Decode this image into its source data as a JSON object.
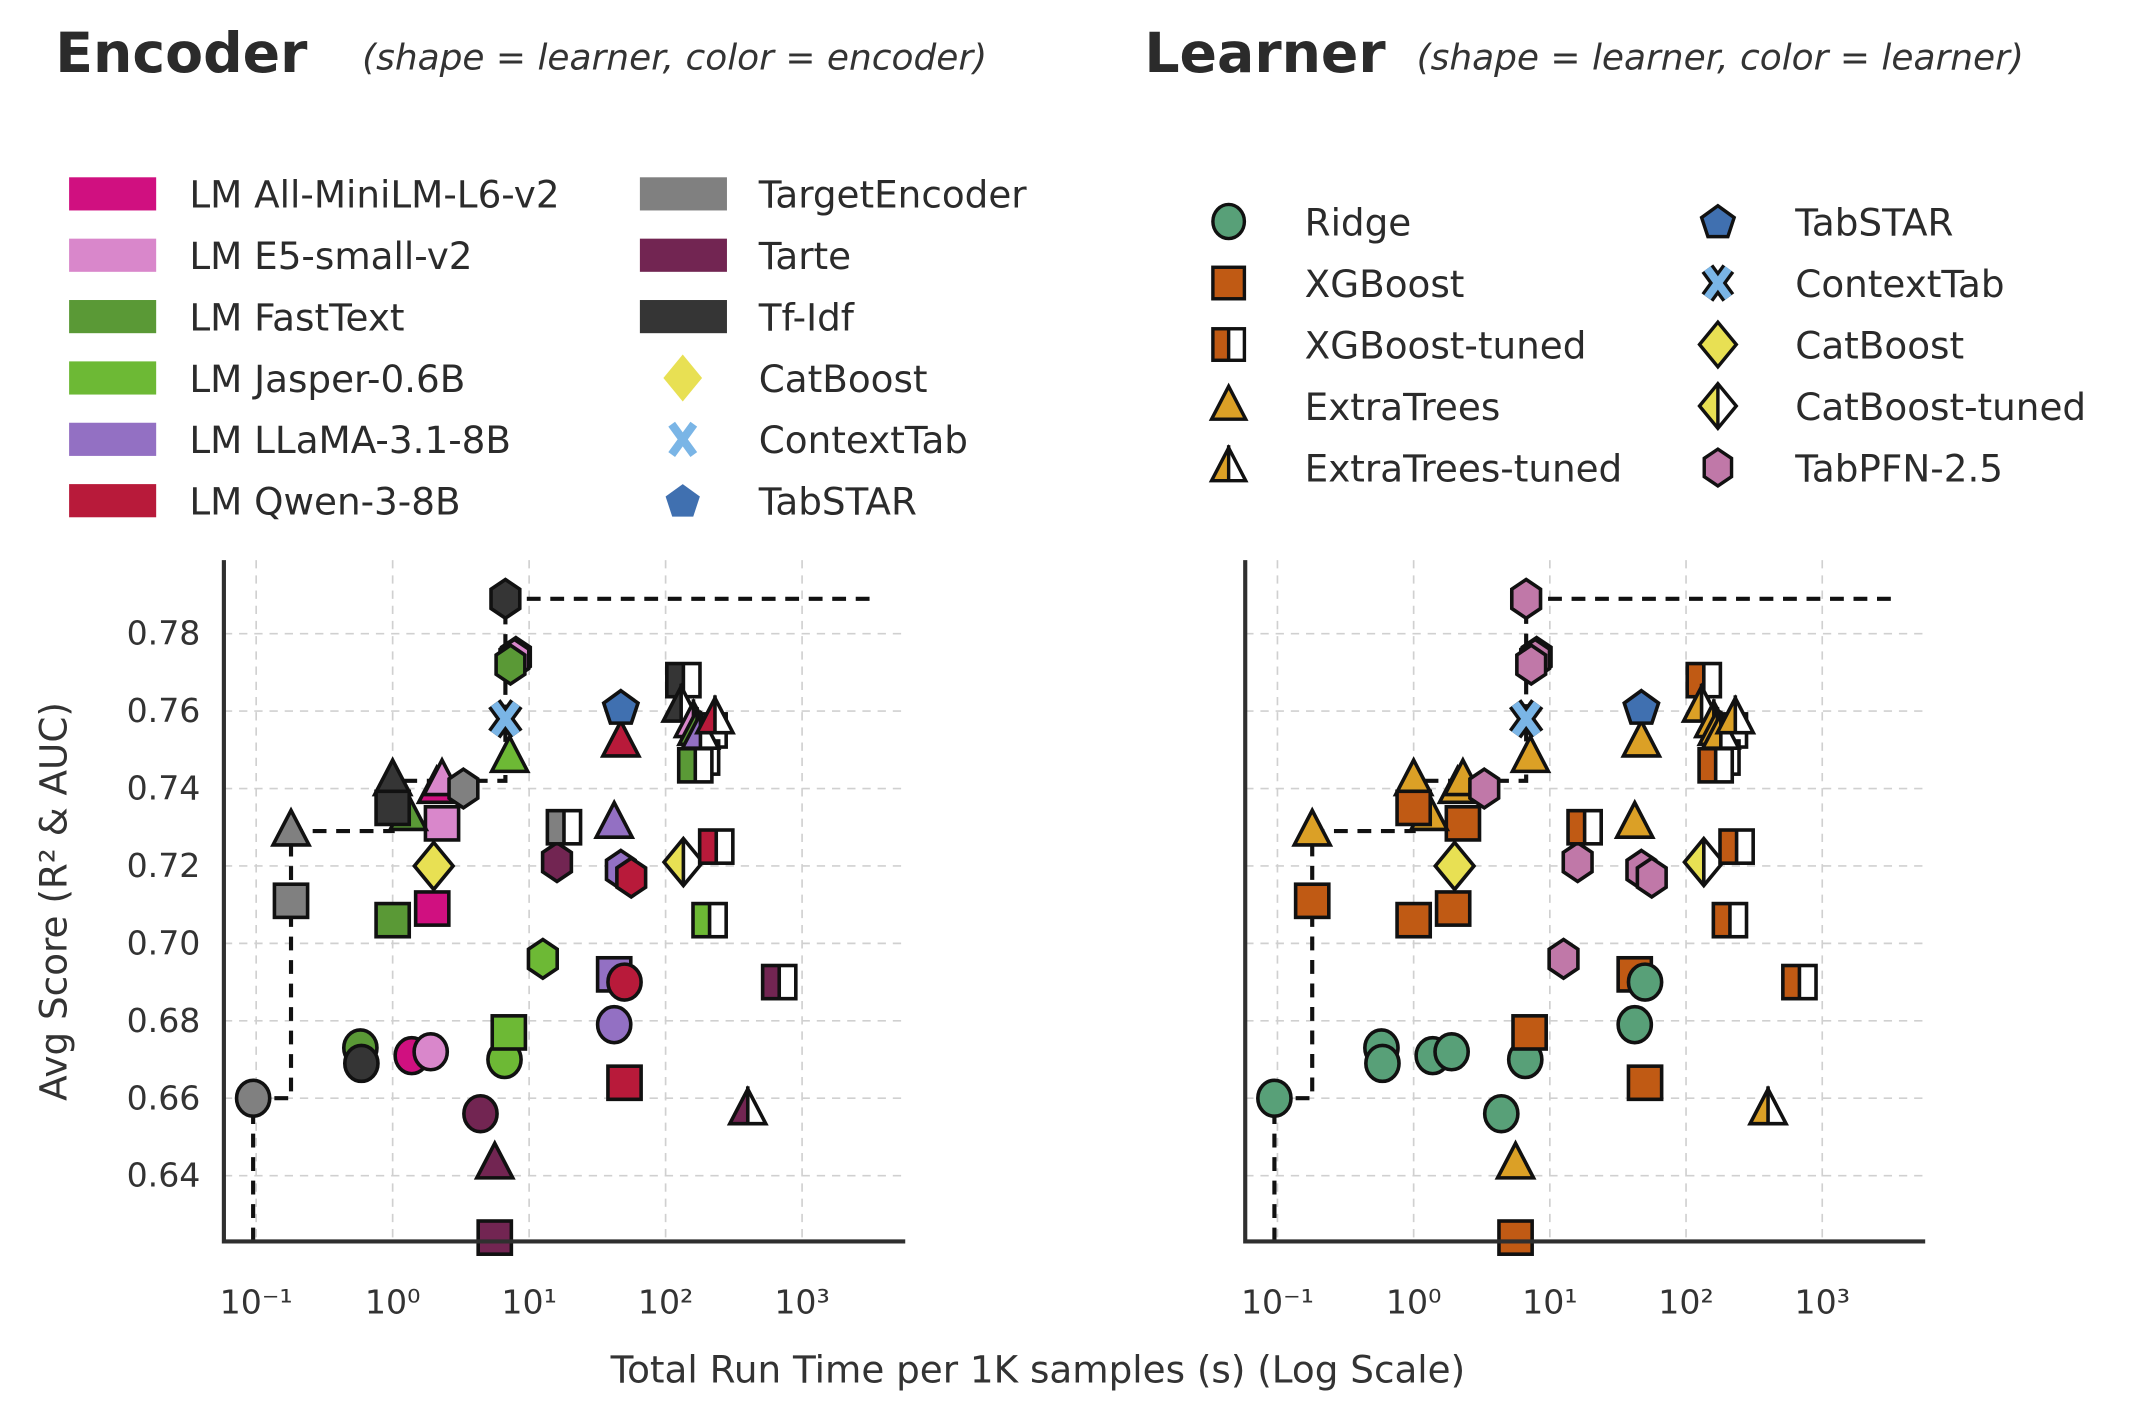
{
  "panels": [
    {
      "title": "Encoder",
      "subtitle": "(shape = learner, color = encoder)",
      "color_by": "encoder"
    },
    {
      "title": "Learner",
      "subtitle": "(shape = learner, color = learner)",
      "color_by": "learner"
    }
  ],
  "encoder_legend": [
    {
      "label": "LM All-MiniLM-L6-v2",
      "key": "MiniLM",
      "kind": "patch"
    },
    {
      "label": "LM E5-small-v2",
      "key": "E5",
      "kind": "patch"
    },
    {
      "label": "LM FastText",
      "key": "FastText",
      "kind": "patch"
    },
    {
      "label": "LM Jasper-0.6B",
      "key": "Jasper",
      "kind": "patch"
    },
    {
      "label": "LM LLaMA-3.1-8B",
      "key": "LLaMA",
      "kind": "patch"
    },
    {
      "label": "LM Qwen-3-8B",
      "key": "Qwen",
      "kind": "patch"
    },
    {
      "label": "TargetEncoder",
      "key": "TargetEncoder",
      "kind": "patch"
    },
    {
      "label": "Tarte",
      "key": "Tarte",
      "kind": "patch"
    },
    {
      "label": "Tf-Idf",
      "key": "TfIdf",
      "kind": "patch"
    },
    {
      "label": "CatBoost",
      "key": "CatBoost",
      "kind": "diamond"
    },
    {
      "label": "ContextTab",
      "key": "ContextTab",
      "kind": "x"
    },
    {
      "label": "TabSTAR",
      "key": "TabSTAR",
      "kind": "pentagon"
    }
  ],
  "learner_legend": [
    {
      "label": "Ridge",
      "key": "Ridge"
    },
    {
      "label": "XGBoost",
      "key": "XGBoost"
    },
    {
      "label": "XGBoost-tuned",
      "key": "XGBoost-tuned"
    },
    {
      "label": "ExtraTrees",
      "key": "ExtraTrees"
    },
    {
      "label": "ExtraTrees-tuned",
      "key": "ExtraTrees-tuned"
    },
    {
      "label": "TabSTAR",
      "key": "TabSTAR"
    },
    {
      "label": "ContextTab",
      "key": "ContextTab"
    },
    {
      "label": "CatBoost",
      "key": "CatBoost"
    },
    {
      "label": "CatBoost-tuned",
      "key": "CatBoost-tuned"
    },
    {
      "label": "TabPFN-2.5",
      "key": "TabPFN-2.5"
    }
  ],
  "colors": {
    "encoder": {
      "MiniLM": "#d01080",
      "E5": "#d987cb",
      "FastText": "#5a9936",
      "Jasper": "#6db935",
      "LLaMA": "#9370c3",
      "Qwen": "#b81a3a",
      "TargetEncoder": "#808080",
      "Tarte": "#722552",
      "TfIdf": "#353535",
      "CatBoost": "#e8e053",
      "ContextTab": "#7ab5e6",
      "TabSTAR": "#4070b0"
    },
    "learner": {
      "Ridge": "#58a078",
      "XGBoost": "#c05a14",
      "XGBoost-tuned": "#c05a14",
      "ExtraTrees": "#dba026",
      "ExtraTrees-tuned": "#dba026",
      "TabSTAR": "#4070b0",
      "ContextTab": "#7ab5e6",
      "CatBoost": "#e8e053",
      "CatBoost-tuned": "#e8e053",
      "TabPFN-2.5": "#c078a8"
    }
  },
  "shapes": {
    "Ridge": "circle",
    "XGBoost": "square",
    "XGBoost-tuned": "half-square",
    "ExtraTrees": "triangle",
    "ExtraTrees-tuned": "half-triangle",
    "TabSTAR": "pentagon",
    "ContextTab": "x",
    "CatBoost": "diamond",
    "CatBoost-tuned": "half-diamond",
    "TabPFN-2.5": "hexagon"
  },
  "chart_data": {
    "type": "scatter",
    "xlabel": "Total Run Time per 1K samples (s) (Log Scale)",
    "ylabel": "Avg Score (R² & AUC)",
    "x_scale": "log",
    "xlim": [
      0.058,
      5700
    ],
    "ylim": [
      0.623,
      0.799
    ],
    "x_ticks": [
      0.1,
      1,
      10,
      100,
      1000
    ],
    "x_tick_labels": [
      "10⁻¹",
      "10⁰",
      "10¹",
      "10²",
      "10³"
    ],
    "y_ticks": [
      0.64,
      0.66,
      0.68,
      0.7,
      0.72,
      0.74,
      0.76,
      0.78
    ],
    "y_tick_labels": [
      "0.64",
      "0.66",
      "0.68",
      "0.70",
      "0.72",
      "0.74",
      "0.76",
      "0.78"
    ],
    "grid": true,
    "pareto_frontier": [
      [
        0.095,
        0.66
      ],
      [
        0.18,
        0.729
      ],
      [
        1.0,
        0.742
      ],
      [
        6.7,
        0.789
      ]
    ],
    "frontier_end_x": 3500,
    "points": [
      {
        "x": 0.095,
        "y": 0.66,
        "learner": "Ridge",
        "encoder": "TargetEncoder"
      },
      {
        "x": 0.58,
        "y": 0.673,
        "learner": "Ridge",
        "encoder": "FastText"
      },
      {
        "x": 0.59,
        "y": 0.669,
        "learner": "Ridge",
        "encoder": "TfIdf"
      },
      {
        "x": 1.38,
        "y": 0.671,
        "learner": "Ridge",
        "encoder": "MiniLM"
      },
      {
        "x": 1.9,
        "y": 0.672,
        "learner": "Ridge",
        "encoder": "E5"
      },
      {
        "x": 6.6,
        "y": 0.67,
        "learner": "Ridge",
        "encoder": "Jasper"
      },
      {
        "x": 4.4,
        "y": 0.656,
        "learner": "Ridge",
        "encoder": "Tarte"
      },
      {
        "x": 42,
        "y": 0.679,
        "learner": "Ridge",
        "encoder": "LLaMA"
      },
      {
        "x": 0.18,
        "y": 0.711,
        "learner": "XGBoost",
        "encoder": "TargetEncoder"
      },
      {
        "x": 1.0,
        "y": 0.706,
        "learner": "XGBoost",
        "encoder": "FastText"
      },
      {
        "x": 1.95,
        "y": 0.709,
        "learner": "XGBoost",
        "encoder": "MiniLM"
      },
      {
        "x": 2.3,
        "y": 0.731,
        "learner": "XGBoost",
        "encoder": "E5"
      },
      {
        "x": 7.1,
        "y": 0.677,
        "learner": "XGBoost",
        "encoder": "Jasper"
      },
      {
        "x": 42,
        "y": 0.692,
        "learner": "XGBoost",
        "encoder": "LLaMA"
      },
      {
        "x": 50,
        "y": 0.664,
        "learner": "XGBoost",
        "encoder": "Qwen"
      },
      {
        "x": 5.6,
        "y": 0.624,
        "learner": "XGBoost",
        "encoder": "Tarte"
      },
      {
        "x": 50,
        "y": 0.69,
        "learner": "Ridge",
        "encoder": "Qwen"
      },
      {
        "x": 0.18,
        "y": 0.729,
        "learner": "ExtraTrees",
        "encoder": "TargetEncoder"
      },
      {
        "x": 1.0,
        "y": 0.742,
        "learner": "ExtraTrees",
        "encoder": "TfIdf"
      },
      {
        "x": 1.3,
        "y": 0.733,
        "learner": "ExtraTrees",
        "encoder": "FastText"
      },
      {
        "x": 2.1,
        "y": 0.74,
        "learner": "ExtraTrees",
        "encoder": "MiniLM"
      },
      {
        "x": 2.3,
        "y": 0.742,
        "learner": "ExtraTrees",
        "encoder": "E5"
      },
      {
        "x": 1.0,
        "y": 0.735,
        "learner": "XGBoost",
        "encoder": "TfIdf"
      },
      {
        "x": 7.2,
        "y": 0.748,
        "learner": "ExtraTrees",
        "encoder": "Jasper"
      },
      {
        "x": 47,
        "y": 0.752,
        "learner": "ExtraTrees",
        "encoder": "Qwen"
      },
      {
        "x": 42,
        "y": 0.731,
        "learner": "ExtraTrees",
        "encoder": "LLaMA"
      },
      {
        "x": 5.6,
        "y": 0.643,
        "learner": "ExtraTrees",
        "encoder": "Tarte"
      },
      {
        "x": 3.3,
        "y": 0.74,
        "learner": "TabPFN-2.5",
        "encoder": "TargetEncoder"
      },
      {
        "x": 2.0,
        "y": 0.72,
        "learner": "CatBoost",
        "encoder": "CatBoost"
      },
      {
        "x": 8.0,
        "y": 0.774,
        "learner": "TabPFN-2.5",
        "encoder": "MiniLM"
      },
      {
        "x": 7.8,
        "y": 0.7735,
        "learner": "TabPFN-2.5",
        "encoder": "E5"
      },
      {
        "x": 7.3,
        "y": 0.772,
        "learner": "TabPFN-2.5",
        "encoder": "FastText"
      },
      {
        "x": 6.7,
        "y": 0.789,
        "learner": "TabPFN-2.5",
        "encoder": "TfIdf"
      },
      {
        "x": 6.7,
        "y": 0.758,
        "learner": "ContextTab",
        "encoder": "ContextTab"
      },
      {
        "x": 12.6,
        "y": 0.696,
        "learner": "TabPFN-2.5",
        "encoder": "Jasper"
      },
      {
        "x": 16,
        "y": 0.721,
        "learner": "TabPFN-2.5",
        "encoder": "Tarte"
      },
      {
        "x": 47,
        "y": 0.719,
        "learner": "TabPFN-2.5",
        "encoder": "LLaMA"
      },
      {
        "x": 56,
        "y": 0.717,
        "learner": "TabPFN-2.5",
        "encoder": "Qwen"
      },
      {
        "x": 47,
        "y": 0.761,
        "learner": "TabSTAR",
        "encoder": "TabSTAR"
      },
      {
        "x": 18,
        "y": 0.73,
        "learner": "XGBoost-tuned",
        "encoder": "TargetEncoder"
      },
      {
        "x": 135,
        "y": 0.768,
        "learner": "XGBoost-tuned",
        "encoder": "TfIdf"
      },
      {
        "x": 210,
        "y": 0.755,
        "learner": "XGBoost-tuned",
        "encoder": "LLaMA"
      },
      {
        "x": 185,
        "y": 0.748,
        "learner": "XGBoost-tuned",
        "encoder": "MiniLM"
      },
      {
        "x": 165,
        "y": 0.746,
        "learner": "XGBoost-tuned",
        "encoder": "FastText"
      },
      {
        "x": 130,
        "y": 0.761,
        "learner": "ExtraTrees-tuned",
        "encoder": "TfIdf"
      },
      {
        "x": 160,
        "y": 0.757,
        "learner": "ExtraTrees-tuned",
        "encoder": "E5"
      },
      {
        "x": 170,
        "y": 0.755,
        "learner": "ExtraTrees-tuned",
        "encoder": "FastText"
      },
      {
        "x": 180,
        "y": 0.754,
        "learner": "ExtraTrees-tuned",
        "encoder": "LLaMA"
      },
      {
        "x": 230,
        "y": 0.758,
        "learner": "ExtraTrees-tuned",
        "encoder": "Qwen"
      },
      {
        "x": 400,
        "y": 0.657,
        "learner": "ExtraTrees-tuned",
        "encoder": "Tarte"
      },
      {
        "x": 135,
        "y": 0.721,
        "learner": "CatBoost-tuned",
        "encoder": "CatBoost"
      },
      {
        "x": 235,
        "y": 0.725,
        "learner": "XGBoost-tuned",
        "encoder": "Qwen"
      },
      {
        "x": 210,
        "y": 0.706,
        "learner": "XGBoost-tuned",
        "encoder": "Jasper"
      },
      {
        "x": 680,
        "y": 0.69,
        "learner": "XGBoost-tuned",
        "encoder": "Tarte"
      }
    ]
  }
}
